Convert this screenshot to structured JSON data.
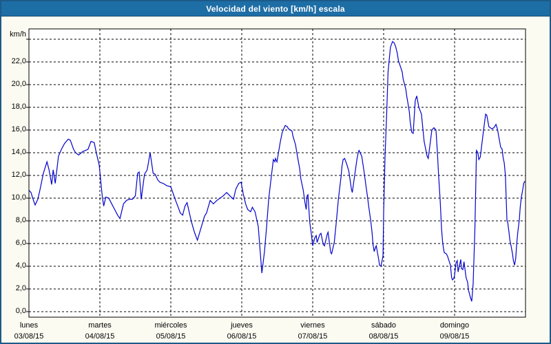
{
  "window": {
    "title": "Velocidad del viento [km/h] escala"
  },
  "colors": {
    "titlebar_bg": "#1e6ea6",
    "window_border": "#1c5a88",
    "page_bg": "#fcfbf2",
    "plot_bg": "#ffffff",
    "plot_border": "#000000",
    "grid": "#000000",
    "line": "#0000cc",
    "label_text": "#000000",
    "title_text": "#ffffff"
  },
  "chart_data": {
    "type": "line",
    "title": "Velocidad del viento [km/h] escala",
    "ylabel_unit": "km/h",
    "decimal_style": "comma",
    "grid": "dashed",
    "legend": "none",
    "ylim": [
      -0.5,
      24.9
    ],
    "y_grid_lines": [
      0,
      2,
      4,
      6,
      8,
      10,
      12,
      14,
      16,
      18,
      20,
      22,
      24
    ],
    "y_tick_labels": [
      "0,0",
      "2,0",
      "4,0",
      "6,0",
      "8,0",
      "10,0",
      "12,0",
      "14,0",
      "16,0",
      "18,0",
      "20,0",
      "22,0"
    ],
    "x_total_hours": 168,
    "x_days": [
      {
        "name": "lunes",
        "date": "03/08/15"
      },
      {
        "name": "martes",
        "date": "04/08/15"
      },
      {
        "name": "miércoles",
        "date": "05/08/15"
      },
      {
        "name": "jueves",
        "date": "06/08/15"
      },
      {
        "name": "viernes",
        "date": "07/08/15"
      },
      {
        "name": "sábado",
        "date": "08/08/15"
      },
      {
        "name": "domingo",
        "date": "09/08/15"
      }
    ],
    "series": [
      {
        "name": "Velocidad del viento [km/h]",
        "points": [
          [
            0,
            10.7
          ],
          [
            0.7,
            10.5
          ],
          [
            1.4,
            9.9
          ],
          [
            2.1,
            9.4
          ],
          [
            3,
            9.9
          ],
          [
            3.7,
            10.7
          ],
          [
            4.9,
            12.2
          ],
          [
            6.1,
            13.2
          ],
          [
            6.8,
            12.5
          ],
          [
            7.7,
            11.2
          ],
          [
            8.2,
            12.5
          ],
          [
            8.9,
            11.3
          ],
          [
            10,
            13.7
          ],
          [
            11,
            14.3
          ],
          [
            12,
            14.8
          ],
          [
            13.3,
            15.2
          ],
          [
            14,
            15.1
          ],
          [
            15.1,
            14.3
          ],
          [
            15.8,
            14.0
          ],
          [
            16.8,
            13.8
          ],
          [
            18.2,
            14.1
          ],
          [
            19.1,
            14.2
          ],
          [
            20,
            14.3
          ],
          [
            21,
            15.0
          ],
          [
            22.1,
            14.9
          ],
          [
            22.8,
            14.0
          ],
          [
            23.8,
            12.9
          ],
          [
            24.3,
            11.5
          ],
          [
            24.8,
            10.2
          ],
          [
            25.3,
            9.3
          ],
          [
            26,
            10.1
          ],
          [
            27,
            10.0
          ],
          [
            28,
            9.5
          ],
          [
            29,
            9.0
          ],
          [
            30,
            8.5
          ],
          [
            30.8,
            8.2
          ],
          [
            32,
            9.5
          ],
          [
            33,
            9.8
          ],
          [
            34,
            9.9
          ],
          [
            35,
            9.9
          ],
          [
            36,
            10.2
          ],
          [
            36.8,
            12.2
          ],
          [
            37.3,
            12.3
          ],
          [
            38,
            9.9
          ],
          [
            39.1,
            12.1
          ],
          [
            40,
            12.5
          ],
          [
            41,
            14.0
          ],
          [
            42,
            12.2
          ],
          [
            42.7,
            12.1
          ],
          [
            43.6,
            11.6
          ],
          [
            44.3,
            11.4
          ],
          [
            45.4,
            11.3
          ],
          [
            46.6,
            11.1
          ],
          [
            48,
            11.0
          ],
          [
            49.6,
            9.8
          ],
          [
            50.5,
            9.2
          ],
          [
            51.2,
            8.7
          ],
          [
            52,
            8.5
          ],
          [
            52.8,
            9.3
          ],
          [
            53.5,
            9.6
          ],
          [
            55,
            7.9
          ],
          [
            56,
            7.0
          ],
          [
            57,
            6.3
          ],
          [
            58.7,
            7.8
          ],
          [
            59.4,
            8.4
          ],
          [
            60.1,
            8.7
          ],
          [
            61.3,
            9.8
          ],
          [
            62.4,
            9.5
          ],
          [
            63.6,
            9.8
          ],
          [
            65.7,
            10.2
          ],
          [
            66.9,
            10.5
          ],
          [
            68,
            10.2
          ],
          [
            69.2,
            9.9
          ],
          [
            70,
            10.8
          ],
          [
            71,
            11.3
          ],
          [
            71.8,
            11.4
          ],
          [
            72.5,
            10.4
          ],
          [
            73.3,
            9.5
          ],
          [
            74,
            9.0
          ],
          [
            75,
            8.8
          ],
          [
            75.6,
            9.2
          ],
          [
            76.5,
            8.8
          ],
          [
            77.6,
            7.5
          ],
          [
            78.8,
            3.4
          ],
          [
            79.7,
            5.3
          ],
          [
            80.4,
            7.5
          ],
          [
            81.1,
            9.9
          ],
          [
            82,
            11.9
          ],
          [
            82.7,
            13.4
          ],
          [
            83.2,
            13.2
          ],
          [
            83.4,
            13.5
          ],
          [
            83.9,
            13.2
          ],
          [
            85,
            14.9
          ],
          [
            85.7,
            15.8
          ],
          [
            86.7,
            16.4
          ],
          [
            87.4,
            16.3
          ],
          [
            87.8,
            16.1
          ],
          [
            88.5,
            16.0
          ],
          [
            89,
            15.9
          ],
          [
            89.3,
            15.5
          ],
          [
            90.2,
            14.7
          ],
          [
            90.9,
            13.6
          ],
          [
            91.6,
            12.6
          ],
          [
            92,
            11.7
          ],
          [
            92.8,
            10.7
          ],
          [
            93.4,
            9.6
          ],
          [
            93.8,
            9.0
          ],
          [
            94.1,
            10.2
          ],
          [
            94.4,
            10.3
          ],
          [
            95,
            7.9
          ],
          [
            95.5,
            6.9
          ],
          [
            96,
            5.8
          ],
          [
            96.7,
            6.5
          ],
          [
            97.2,
            6.7
          ],
          [
            97.5,
            6.1
          ],
          [
            98.4,
            6.8
          ],
          [
            98.8,
            6.9
          ],
          [
            99.6,
            5.9
          ],
          [
            100,
            5.8
          ],
          [
            100.9,
            6.8
          ],
          [
            101.2,
            7.0
          ],
          [
            102.1,
            5.2
          ],
          [
            102.4,
            5.1
          ],
          [
            103.3,
            6.1
          ],
          [
            104,
            7.9
          ],
          [
            104.7,
            9.9
          ],
          [
            105.6,
            11.9
          ],
          [
            105.9,
            12.8
          ],
          [
            106.3,
            13.4
          ],
          [
            106.8,
            13.5
          ],
          [
            107.5,
            13.0
          ],
          [
            108.2,
            12.4
          ],
          [
            109.1,
            10.8
          ],
          [
            109.4,
            10.5
          ],
          [
            110.3,
            12.2
          ],
          [
            111,
            13.5
          ],
          [
            111.5,
            14.1
          ],
          [
            111.7,
            14.2
          ],
          [
            112.6,
            13.7
          ],
          [
            113.3,
            12.5
          ],
          [
            114,
            11.1
          ],
          [
            114.5,
            10.2
          ],
          [
            115,
            9.2
          ],
          [
            115.7,
            7.9
          ],
          [
            116.1,
            6.9
          ],
          [
            116.4,
            5.9
          ],
          [
            116.8,
            5.3
          ],
          [
            117.3,
            5.7
          ],
          [
            117.5,
            5.8
          ],
          [
            118.4,
            4.5
          ],
          [
            118.6,
            4.1
          ],
          [
            119.1,
            4.0
          ],
          [
            119.8,
            4.9
          ],
          [
            120,
            8.7
          ],
          [
            120.5,
            13.8
          ],
          [
            121,
            17.2
          ],
          [
            121.5,
            21.1
          ],
          [
            122,
            22.5
          ],
          [
            122.3,
            23.3
          ],
          [
            123,
            23.8
          ],
          [
            123.5,
            23.7
          ],
          [
            124,
            23.4
          ],
          [
            124.6,
            22.8
          ],
          [
            125,
            22.1
          ],
          [
            125.4,
            21.8
          ],
          [
            125.8,
            21.5
          ],
          [
            126.3,
            21.1
          ],
          [
            126.6,
            20.5
          ],
          [
            127,
            20.1
          ],
          [
            127.5,
            19.6
          ],
          [
            127.8,
            19.0
          ],
          [
            128.2,
            18.4
          ],
          [
            128.7,
            17.6
          ],
          [
            129,
            16.7
          ],
          [
            129.5,
            15.8
          ],
          [
            130,
            15.7
          ],
          [
            130.7,
            18.6
          ],
          [
            131.2,
            19.0
          ],
          [
            131.9,
            18.0
          ],
          [
            132.8,
            17.4
          ],
          [
            133.7,
            15.0
          ],
          [
            134.7,
            13.7
          ],
          [
            135.1,
            13.5
          ],
          [
            136.3,
            16.0
          ],
          [
            137,
            16.2
          ],
          [
            137.7,
            16.0
          ],
          [
            138.2,
            14.0
          ],
          [
            138.6,
            12.0
          ],
          [
            139.1,
            9.9
          ],
          [
            139.6,
            7.3
          ],
          [
            140,
            6.0
          ],
          [
            140.5,
            5.2
          ],
          [
            141.2,
            5.1
          ],
          [
            141.6,
            4.9
          ],
          [
            142.6,
            4.1
          ],
          [
            143,
            3.0
          ],
          [
            143.3,
            2.8
          ],
          [
            143.7,
            2.9
          ],
          [
            144,
            3.2
          ],
          [
            144.5,
            4.3
          ],
          [
            144.9,
            4.5
          ],
          [
            145.2,
            3.5
          ],
          [
            146.1,
            4.6
          ],
          [
            146.3,
            3.8
          ],
          [
            146.8,
            3.7
          ],
          [
            147.2,
            4.4
          ],
          [
            147.9,
            3.0
          ],
          [
            148.4,
            2.6
          ],
          [
            148.7,
            1.9
          ],
          [
            149.4,
            1.2
          ],
          [
            149.8,
            0.9
          ],
          [
            150.3,
            2.5
          ],
          [
            150.9,
            7.5
          ],
          [
            151.4,
            14.2
          ],
          [
            151.9,
            14.0
          ],
          [
            152.2,
            13.4
          ],
          [
            152.7,
            13.6
          ],
          [
            153.8,
            16.0
          ],
          [
            154.5,
            17.4
          ],
          [
            154.9,
            17.3
          ],
          [
            155.6,
            16.3
          ],
          [
            156.6,
            16.1
          ],
          [
            157.3,
            16.2
          ],
          [
            158,
            16.5
          ],
          [
            158.5,
            16.1
          ],
          [
            159.1,
            15.2
          ],
          [
            159.6,
            14.5
          ],
          [
            160.1,
            14.3
          ],
          [
            160.4,
            13.6
          ],
          [
            160.8,
            13.1
          ],
          [
            161.2,
            12.0
          ],
          [
            161.7,
            8.1
          ],
          [
            162,
            7.8
          ],
          [
            162.4,
            7.0
          ],
          [
            162.7,
            6.3
          ],
          [
            163.1,
            5.8
          ],
          [
            163.6,
            5.1
          ],
          [
            163.9,
            4.5
          ],
          [
            164.3,
            4.1
          ],
          [
            164.7,
            4.7
          ],
          [
            165,
            5.9
          ],
          [
            165.4,
            7.0
          ],
          [
            165.9,
            8.1
          ],
          [
            166.2,
            9.2
          ],
          [
            166.6,
            10.1
          ],
          [
            167.1,
            10.8
          ],
          [
            167.4,
            11.3
          ],
          [
            167.8,
            11.5
          ]
        ]
      }
    ]
  }
}
